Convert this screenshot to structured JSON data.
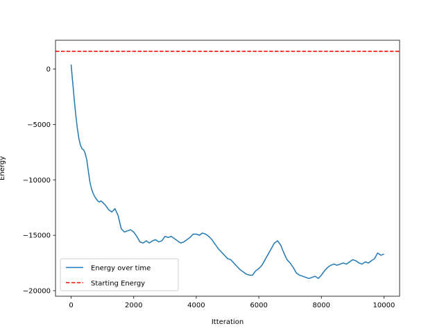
{
  "chart_data": {
    "type": "line",
    "xlabel": "Itteration",
    "ylabel": "Energy",
    "xlim": [
      -500,
      10500
    ],
    "ylim": [
      -20500,
      2600
    ],
    "xticks": [
      0,
      2000,
      4000,
      6000,
      8000,
      10000
    ],
    "xtick_labels": [
      "0",
      "2000",
      "4000",
      "6000",
      "8000",
      "10000"
    ],
    "yticks": [
      0,
      -5000,
      -10000,
      -15000,
      -20000
    ],
    "ytick_labels": [
      "0",
      "−5000",
      "−10000",
      "−15000",
      "−20000"
    ],
    "grid": false,
    "legend_position": "lower-left",
    "series": [
      {
        "name": "Energy over time",
        "color": "#1f77b4",
        "style": "solid",
        "x": [
          0,
          50,
          100,
          150,
          200,
          250,
          300,
          350,
          400,
          450,
          500,
          550,
          600,
          650,
          700,
          750,
          800,
          850,
          900,
          950,
          1000,
          1100,
          1200,
          1300,
          1400,
          1500,
          1600,
          1700,
          1800,
          1900,
          2000,
          2100,
          2200,
          2300,
          2400,
          2500,
          2600,
          2700,
          2800,
          2900,
          3000,
          3100,
          3200,
          3300,
          3400,
          3500,
          3600,
          3700,
          3800,
          3900,
          4000,
          4100,
          4200,
          4300,
          4400,
          4500,
          4600,
          4700,
          4800,
          4900,
          5000,
          5100,
          5200,
          5300,
          5400,
          5500,
          5600,
          5700,
          5800,
          5900,
          6000,
          6100,
          6200,
          6300,
          6400,
          6500,
          6600,
          6700,
          6800,
          6900,
          7000,
          7100,
          7200,
          7300,
          7400,
          7500,
          7600,
          7700,
          7800,
          7900,
          8000,
          8100,
          8200,
          8300,
          8400,
          8500,
          8600,
          8700,
          8800,
          8900,
          9000,
          9100,
          9200,
          9300,
          9400,
          9500,
          9600,
          9700,
          9800,
          9900,
          10000
        ],
        "values": [
          400,
          -1200,
          -2800,
          -4200,
          -5400,
          -6300,
          -6900,
          -7200,
          -7300,
          -7600,
          -8200,
          -9200,
          -10200,
          -10800,
          -11200,
          -11500,
          -11700,
          -11900,
          -12000,
          -11900,
          -12000,
          -12300,
          -12700,
          -12900,
          -12600,
          -13200,
          -14400,
          -14700,
          -14600,
          -14500,
          -14700,
          -15100,
          -15600,
          -15700,
          -15500,
          -15700,
          -15500,
          -15400,
          -15600,
          -15500,
          -15100,
          -15200,
          -15100,
          -15300,
          -15500,
          -15700,
          -15600,
          -15400,
          -15200,
          -14900,
          -14900,
          -15000,
          -14800,
          -14900,
          -15100,
          -15400,
          -15800,
          -16200,
          -16500,
          -16800,
          -17100,
          -17200,
          -17500,
          -17800,
          -18100,
          -18300,
          -18500,
          -18600,
          -18600,
          -18200,
          -18000,
          -17700,
          -17200,
          -16700,
          -16200,
          -15700,
          -15500,
          -15900,
          -16600,
          -17200,
          -17500,
          -17900,
          -18400,
          -18600,
          -18700,
          -18800,
          -18900,
          -18800,
          -18700,
          -18900,
          -18600,
          -18200,
          -17900,
          -17700,
          -17600,
          -17700,
          -17600,
          -17500,
          -17600,
          -17400,
          -17200,
          -17300,
          -17500,
          -17600,
          -17400,
          -17500,
          -17300,
          -17100,
          -16600,
          -16800,
          -16700
        ]
      },
      {
        "name": "Starting Energy",
        "color": "#ff0000",
        "style": "dashed",
        "constant": 1600
      }
    ]
  }
}
